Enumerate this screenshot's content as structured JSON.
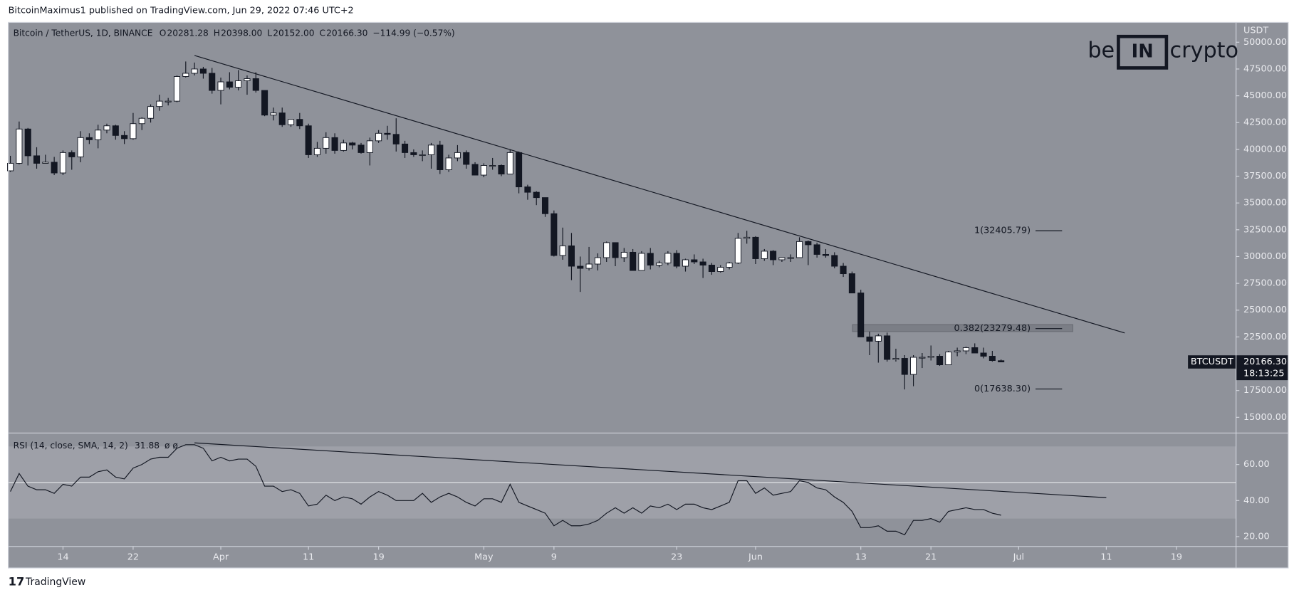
{
  "page": {
    "byline": "BitcoinMaximus1 published on TradingView.com, Jun 29, 2022 07:46 UTC+2",
    "footer": "TradingView"
  },
  "logo": {
    "left": "be",
    "mid": "IN",
    "right": "crypto"
  },
  "chart_data": [
    {
      "type": "candlestick",
      "title": "Bitcoin / TetherUS, 1D, BINANCE",
      "header": [
        {
          "key": "O",
          "text": "20281.28"
        },
        {
          "key": "H",
          "text": "20398.00"
        },
        {
          "key": "L",
          "text": "20152.00"
        },
        {
          "key": "C",
          "text": "20166.30"
        }
      ],
      "change": "−114.99 (−0.57%)",
      "y_unit": "USDT",
      "xlim": [
        -0.24,
        139.8
      ],
      "xticks": [
        {
          "value": 6,
          "label": "14"
        },
        {
          "value": 14,
          "label": "22"
        },
        {
          "value": 24,
          "label": "Apr"
        },
        {
          "value": 34,
          "label": "11"
        },
        {
          "value": 42,
          "label": "19"
        },
        {
          "value": 54,
          "label": "May"
        },
        {
          "value": 62,
          "label": "9"
        },
        {
          "value": 76,
          "label": "23"
        },
        {
          "value": 85,
          "label": "Jun"
        },
        {
          "value": 97,
          "label": "13"
        },
        {
          "value": 105,
          "label": "21"
        },
        {
          "value": 115,
          "label": "Jul"
        },
        {
          "value": 125,
          "label": "11"
        },
        {
          "value": 133,
          "label": "19"
        }
      ],
      "ylim": [
        13610,
        51850
      ],
      "yticks": [
        {
          "value": 15000,
          "label": "15000.00"
        },
        {
          "value": 17500,
          "label": "17500.00"
        },
        {
          "value": 20000,
          "label": "20000.00"
        },
        {
          "value": 22500,
          "label": "22500.00"
        },
        {
          "value": 25000,
          "label": "25000.00"
        },
        {
          "value": 27500,
          "label": "27500.00"
        },
        {
          "value": 30000,
          "label": "30000.00"
        },
        {
          "value": 32500,
          "label": "32500.00"
        },
        {
          "value": 35000,
          "label": "35000.00"
        },
        {
          "value": 37500,
          "label": "37500.00"
        },
        {
          "value": 40000,
          "label": "40000.00"
        },
        {
          "value": 42500,
          "label": "42500.00"
        },
        {
          "value": 45000,
          "label": "45000.00"
        },
        {
          "value": 47500,
          "label": "47500.00"
        },
        {
          "value": 50000,
          "label": "50000.00"
        }
      ],
      "ohlc": [
        [
          38000,
          39400,
          37900,
          38700
        ],
        [
          38700,
          42600,
          38600,
          41900
        ],
        [
          41900,
          42000,
          38500,
          39400
        ],
        [
          39400,
          40200,
          38200,
          38700
        ],
        [
          38700,
          39500,
          38700,
          38800
        ],
        [
          38800,
          39300,
          37600,
          37800
        ],
        [
          37800,
          39900,
          37600,
          39700
        ],
        [
          39700,
          39900,
          38100,
          39300
        ],
        [
          39300,
          41700,
          38800,
          41100
        ],
        [
          41100,
          41500,
          40500,
          40900
        ],
        [
          40900,
          42300,
          40100,
          41800
        ],
        [
          41800,
          42400,
          41500,
          42200
        ],
        [
          42200,
          42300,
          40900,
          41300
        ],
        [
          41300,
          41700,
          40500,
          41000
        ],
        [
          41000,
          43400,
          40900,
          42400
        ],
        [
          42400,
          43000,
          41800,
          42900
        ],
        [
          42900,
          44200,
          42500,
          44000
        ],
        [
          44000,
          45100,
          43600,
          44500
        ],
        [
          44500,
          44800,
          44100,
          44500
        ],
        [
          44500,
          46900,
          44400,
          46800
        ],
        [
          46800,
          48200,
          46700,
          47100
        ],
        [
          47100,
          48100,
          46900,
          47500
        ],
        [
          47500,
          47700,
          46600,
          47100
        ],
        [
          47100,
          47600,
          45200,
          45500
        ],
        [
          45500,
          46700,
          44200,
          46300
        ],
        [
          46300,
          47200,
          45600,
          45800
        ],
        [
          45800,
          47400,
          45500,
          46400
        ],
        [
          46400,
          46900,
          45100,
          46600
        ],
        [
          46600,
          47200,
          45300,
          45500
        ],
        [
          45500,
          45500,
          43100,
          43200
        ],
        [
          43200,
          43900,
          42700,
          43400
        ],
        [
          43400,
          43900,
          42100,
          42300
        ],
        [
          42300,
          42800,
          42100,
          42800
        ],
        [
          42800,
          43400,
          41900,
          42200
        ],
        [
          42200,
          42400,
          39200,
          39500
        ],
        [
          39500,
          40700,
          39300,
          40100
        ],
        [
          40100,
          41600,
          39600,
          41100
        ],
        [
          41100,
          41500,
          39600,
          39900
        ],
        [
          39900,
          40900,
          39800,
          40600
        ],
        [
          40600,
          40700,
          40000,
          40400
        ],
        [
          40400,
          40600,
          39600,
          39700
        ],
        [
          39700,
          41100,
          38500,
          40800
        ],
        [
          40800,
          41800,
          40600,
          41500
        ],
        [
          41500,
          42200,
          40900,
          41400
        ],
        [
          41400,
          42900,
          39800,
          40500
        ],
        [
          40500,
          40800,
          39200,
          39700
        ],
        [
          39700,
          40000,
          39300,
          39500
        ],
        [
          39500,
          39900,
          38900,
          39500
        ],
        [
          39500,
          40600,
          38200,
          40400
        ],
        [
          40400,
          40800,
          37700,
          38100
        ],
        [
          38100,
          39500,
          37900,
          39200
        ],
        [
          39200,
          40400,
          38900,
          39700
        ],
        [
          39700,
          39900,
          38200,
          38600
        ],
        [
          38600,
          38800,
          37600,
          37600
        ],
        [
          37600,
          38700,
          37400,
          38500
        ],
        [
          38500,
          39200,
          38100,
          38500
        ],
        [
          38500,
          38600,
          37500,
          37700
        ],
        [
          37700,
          40000,
          37700,
          39700
        ],
        [
          39700,
          39800,
          35900,
          36500
        ],
        [
          36500,
          36700,
          35300,
          36000
        ],
        [
          36000,
          36100,
          34800,
          35500
        ],
        [
          35500,
          35500,
          33700,
          34000
        ],
        [
          34000,
          34300,
          30000,
          30100
        ],
        [
          30100,
          32700,
          29700,
          31000
        ],
        [
          31000,
          32200,
          27800,
          29100
        ],
        [
          29100,
          30000,
          26700,
          28900
        ],
        [
          28900,
          30900,
          28700,
          29300
        ],
        [
          29300,
          30300,
          28700,
          29900
        ],
        [
          29900,
          31400,
          29500,
          31300
        ],
        [
          31300,
          31300,
          29100,
          29900
        ],
        [
          29900,
          30800,
          29500,
          30400
        ],
        [
          30400,
          30700,
          28700,
          28700
        ],
        [
          28700,
          30500,
          28700,
          30300
        ],
        [
          30300,
          30800,
          28800,
          29200
        ],
        [
          29200,
          29600,
          29000,
          29400
        ],
        [
          29400,
          30500,
          29200,
          30300
        ],
        [
          30300,
          30600,
          28900,
          29100
        ],
        [
          29100,
          29800,
          28600,
          29700
        ],
        [
          29700,
          30200,
          29300,
          29500
        ],
        [
          29500,
          29800,
          28000,
          29200
        ],
        [
          29200,
          29400,
          28300,
          28600
        ],
        [
          28600,
          29200,
          28500,
          29000
        ],
        [
          29000,
          29500,
          28800,
          29400
        ],
        [
          29400,
          32200,
          29300,
          31700
        ],
        [
          31700,
          32400,
          31200,
          31800
        ],
        [
          31800,
          31900,
          29300,
          29800
        ],
        [
          29800,
          30700,
          29600,
          30500
        ],
        [
          30500,
          30600,
          29200,
          29700
        ],
        [
          29700,
          29900,
          29500,
          29900
        ],
        [
          29900,
          30200,
          29500,
          29900
        ],
        [
          29900,
          31800,
          29900,
          31400
        ],
        [
          31400,
          31500,
          29200,
          31100
        ],
        [
          31100,
          31300,
          29900,
          30200
        ],
        [
          30200,
          30700,
          29900,
          30100
        ],
        [
          30100,
          30400,
          28900,
          29100
        ],
        [
          29100,
          29400,
          28100,
          28400
        ],
        [
          28400,
          28600,
          26600,
          26600
        ],
        [
          26600,
          26900,
          22600,
          22500
        ],
        [
          22500,
          23000,
          20800,
          22100
        ],
        [
          22100,
          22800,
          20100,
          22600
        ],
        [
          22600,
          22900,
          20200,
          20400
        ],
        [
          20400,
          21400,
          20200,
          20500
        ],
        [
          20500,
          20800,
          17600,
          19000
        ],
        [
          19000,
          20800,
          17900,
          20600
        ],
        [
          20600,
          21000,
          19600,
          20600
        ],
        [
          20600,
          21700,
          20300,
          20700
        ],
        [
          20700,
          20900,
          19800,
          19900
        ],
        [
          19900,
          21200,
          19900,
          21100
        ],
        [
          21100,
          21500,
          20700,
          21200
        ],
        [
          21200,
          21600,
          20900,
          21500
        ],
        [
          21500,
          21900,
          21000,
          21000
        ],
        [
          21000,
          21500,
          20500,
          20700
        ],
        [
          20700,
          21200,
          20200,
          20300
        ],
        [
          20281.28,
          20398,
          20152,
          20166.3
        ]
      ],
      "trendline": {
        "x": [
          21,
          127.1
        ],
        "y": [
          48760,
          22870
        ]
      },
      "fib": [
        {
          "value": 32405.79,
          "label": "1(32405.79)"
        },
        {
          "value": 23279.48,
          "label": "0.382(23279.48)"
        },
        {
          "value": 17638.3,
          "label": "0(17638.30)"
        }
      ],
      "zone": [
        23000,
        23650
      ],
      "last_price": {
        "symbol": "BTCUSDT",
        "price": "20166.30",
        "countdown": "18:13:25"
      }
    },
    {
      "type": "line",
      "title": "RSI (14, close, SMA, 14, 2)",
      "extra": "ø  ø",
      "ylim": [
        15,
        77
      ],
      "yticks": [
        {
          "value": 20,
          "label": "20.00"
        },
        {
          "value": 40,
          "label": "40.00"
        },
        {
          "value": 60,
          "label": "60.00"
        }
      ],
      "band": [
        30,
        70
      ],
      "midline": 50,
      "values": [
        45,
        55,
        48,
        46,
        46,
        44,
        49,
        48,
        53,
        53,
        56,
        57,
        53,
        52,
        58,
        60,
        63,
        64,
        64,
        69,
        71,
        71,
        69,
        62,
        64,
        62,
        63,
        63,
        59,
        48,
        48,
        45,
        46,
        44,
        37,
        38,
        43,
        40,
        42,
        41,
        38,
        42,
        45,
        43,
        40,
        40,
        40,
        44,
        39,
        42,
        44,
        42,
        39,
        37,
        41,
        41,
        39,
        49,
        39,
        37,
        35,
        33,
        26,
        29,
        26,
        26,
        27,
        29,
        33,
        36,
        33,
        36,
        33,
        37,
        36,
        38,
        35,
        38,
        38,
        36,
        35,
        37,
        39,
        51,
        51,
        44,
        47,
        43,
        44,
        45,
        51,
        50,
        47,
        46,
        42,
        39,
        34,
        25,
        25,
        26,
        23,
        23,
        21,
        29,
        29,
        30,
        28,
        34,
        35,
        36,
        35,
        35,
        33,
        31.88
      ],
      "trendline": {
        "x": [
          21,
          125
        ],
        "y": [
          72,
          41.6
        ]
      }
    }
  ]
}
